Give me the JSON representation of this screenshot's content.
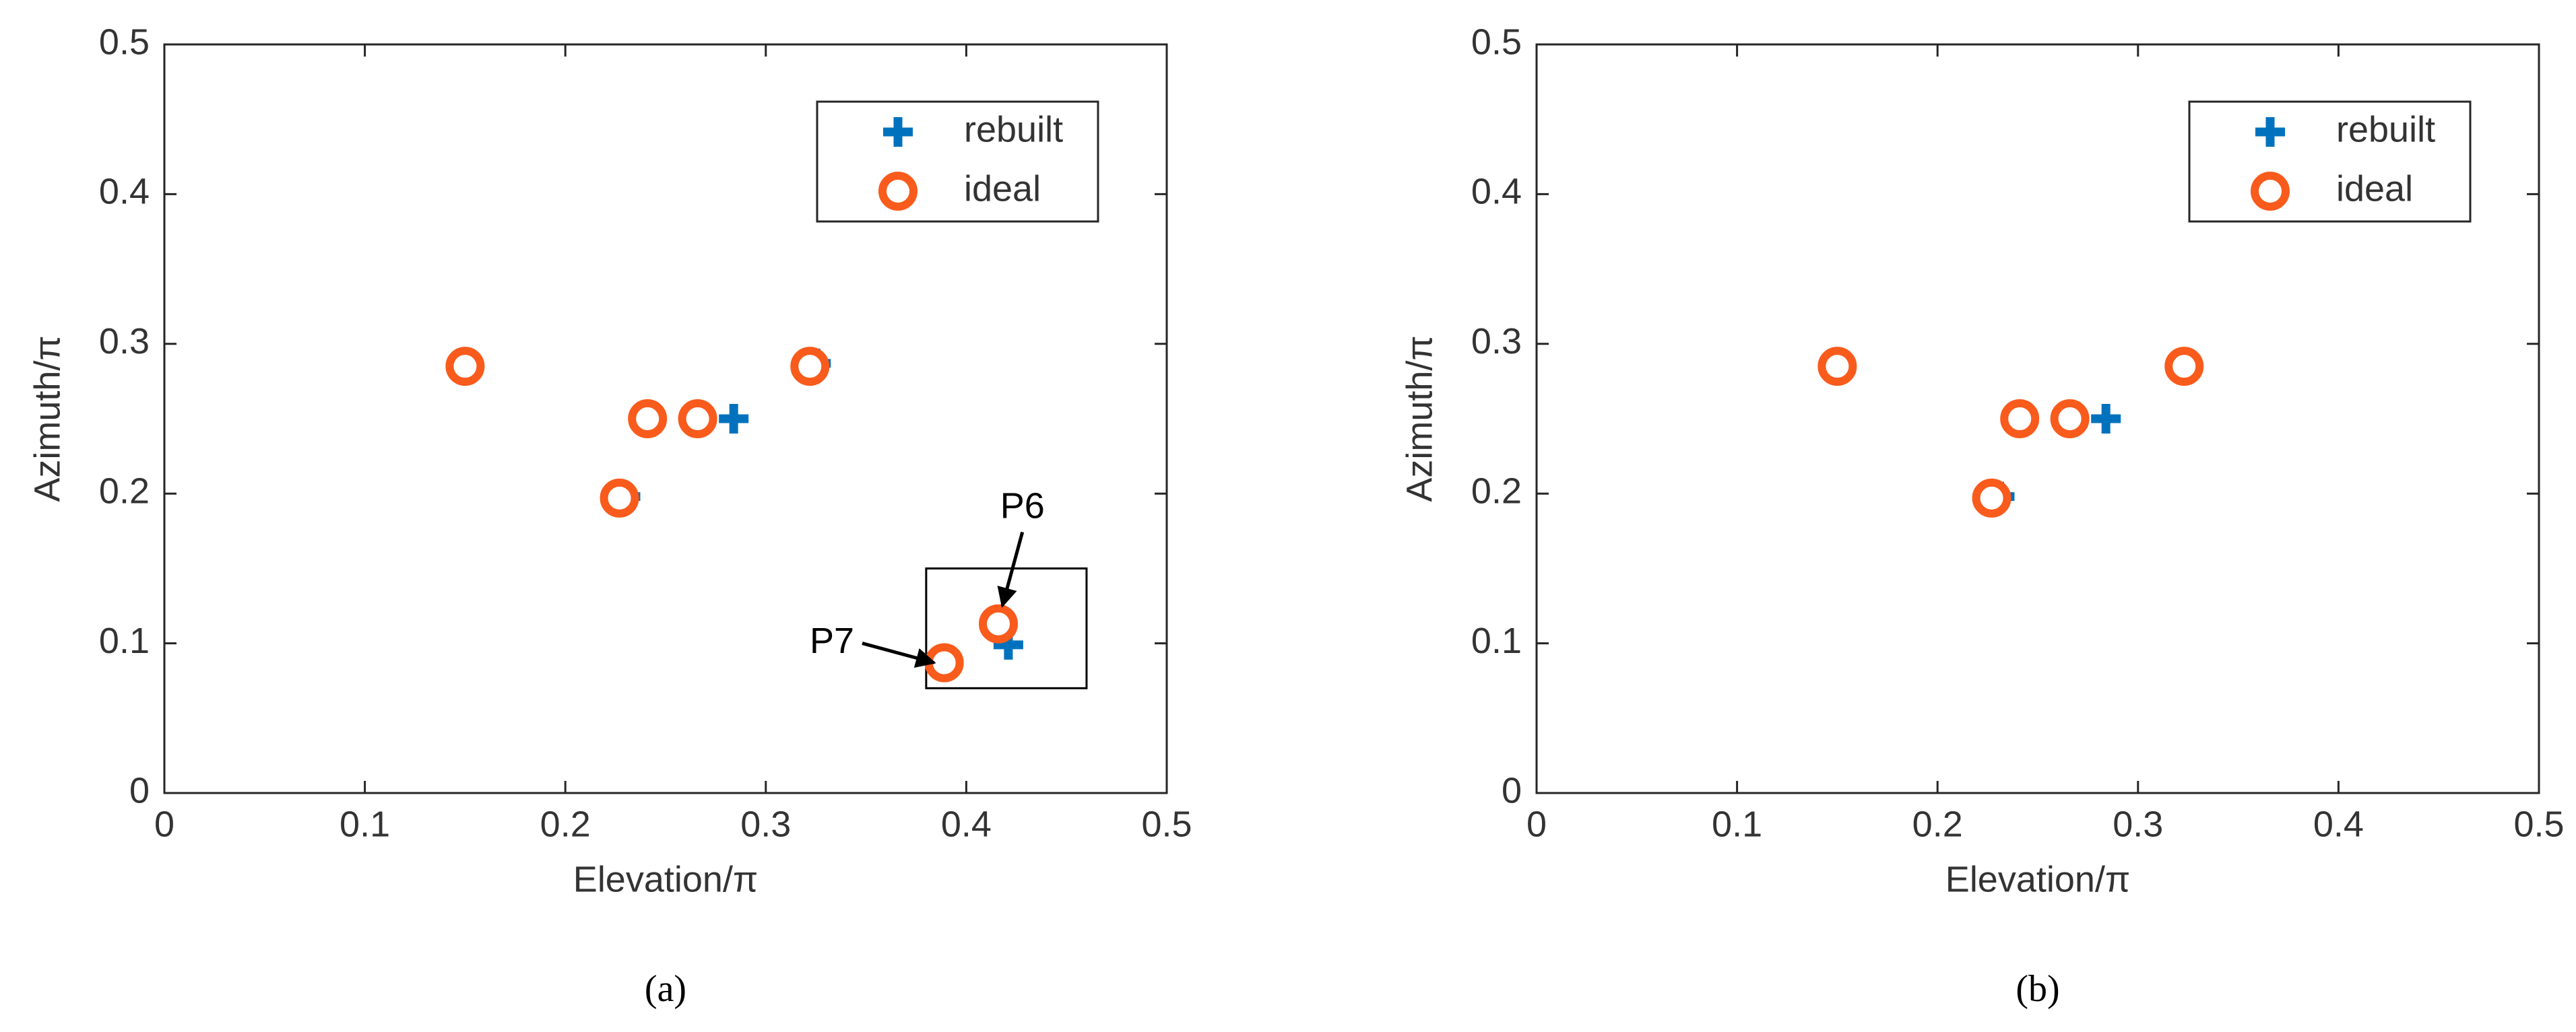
{
  "chart_data": [
    {
      "type": "scatter",
      "caption": "(a)",
      "xlabel": "Elevation/π",
      "ylabel": "Azimuth/π",
      "xlim": [
        0,
        0.5
      ],
      "ylim": [
        0,
        0.5
      ],
      "xticks": [
        0,
        0.1,
        0.2,
        0.3,
        0.4,
        0.5
      ],
      "yticks": [
        0,
        0.1,
        0.2,
        0.3,
        0.4,
        0.5
      ],
      "legend": "northeast",
      "series": [
        {
          "name": "rebuilt",
          "color": "#0072BD",
          "marker": "plus",
          "x": [
            0.148,
            0.24,
            0.284,
            0.325,
            0.23,
            0.421
          ],
          "values": [
            0.285,
            0.25,
            0.25,
            0.287,
            0.198,
            0.099
          ]
        },
        {
          "name": "ideal",
          "color": "#F95B1C",
          "marker": "circle",
          "x": [
            0.15,
            0.241,
            0.266,
            0.322,
            0.227,
            0.416,
            0.389
          ],
          "values": [
            0.285,
            0.25,
            0.25,
            0.285,
            0.197,
            0.113,
            0.087
          ]
        }
      ],
      "annotations": [
        {
          "text": "P6"
        },
        {
          "text": "P7"
        }
      ]
    },
    {
      "type": "scatter",
      "caption": "(b)",
      "xlabel": "Elevation/π",
      "ylabel": "Azimuth/π",
      "xlim": [
        0,
        0.5
      ],
      "ylim": [
        0,
        0.5
      ],
      "xticks": [
        0,
        0.1,
        0.2,
        0.3,
        0.4,
        0.5
      ],
      "yticks": [
        0,
        0.1,
        0.2,
        0.3,
        0.4,
        0.5
      ],
      "legend": "northeast",
      "series": [
        {
          "name": "rebuilt",
          "color": "#0072BD",
          "marker": "plus",
          "x": [
            0.148,
            0.241,
            0.284,
            0.325,
            0.231
          ],
          "values": [
            0.285,
            0.25,
            0.25,
            0.285,
            0.198
          ]
        },
        {
          "name": "ideal",
          "color": "#F95B1C",
          "marker": "circle",
          "x": [
            0.15,
            0.241,
            0.266,
            0.323,
            0.227
          ],
          "values": [
            0.285,
            0.25,
            0.25,
            0.285,
            0.197
          ]
        }
      ]
    }
  ]
}
